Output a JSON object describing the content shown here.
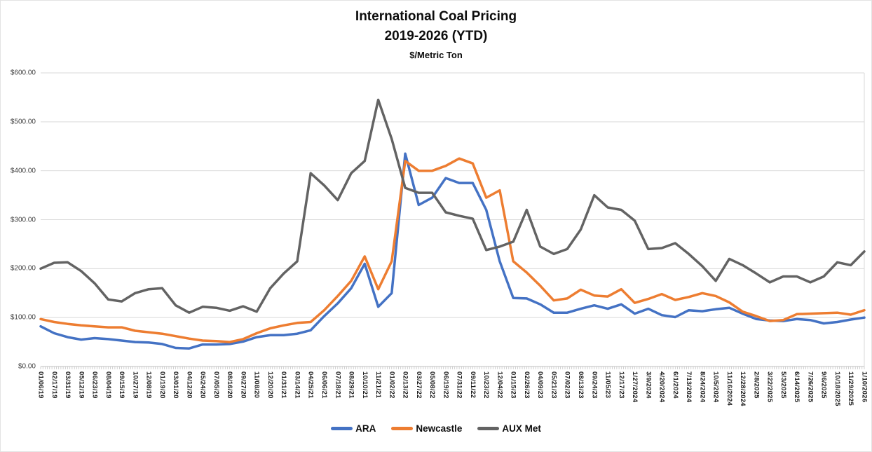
{
  "chart_data": {
    "type": "line",
    "title": "International Coal Pricing",
    "title_line2": "2019-2026 (YTD)",
    "subtitle": "$/Metric Ton",
    "legend_position": "bottom",
    "grid": "horizontal",
    "ylim": [
      0,
      600
    ],
    "y_tick_labels": [
      "$0.00",
      "$100.00",
      "$200.00",
      "$300.00",
      "$400.00",
      "$500.00",
      "$600.00"
    ],
    "x_tick_labels": [
      "01/06/19",
      "02/17/19",
      "03/31/19",
      "05/12/19",
      "06/23/19",
      "08/04/19",
      "09/15/19",
      "10/27/19",
      "12/08/19",
      "01/19/20",
      "03/01/20",
      "04/12/20",
      "05/24/20",
      "07/05/20",
      "08/16/20",
      "09/27/20",
      "11/08/20",
      "12/20/20",
      "01/31/21",
      "03/14/21",
      "04/25/21",
      "06/06/21",
      "07/18/21",
      "08/29/21",
      "10/10/21",
      "11/21/21",
      "01/02/22",
      "02/13/22",
      "03/27/22",
      "05/08/22",
      "06/19/22",
      "07/31/22",
      "09/11/22",
      "10/23/22",
      "12/04/22",
      "01/15/23",
      "02/26/23",
      "04/09/23",
      "05/21/23",
      "07/02/23",
      "08/13/23",
      "09/24/23",
      "11/05/23",
      "12/17/23",
      "1/27/2024",
      "3/9/2024",
      "4/20/2024",
      "6/1/2024",
      "7/13/2024",
      "8/24/2024",
      "10/5/2024",
      "11/16/2024",
      "12/28/2024",
      "2/8/2025",
      "3/22/2025",
      "5/3/2025",
      "6/14/2025",
      "7/26/2025",
      "9/6/2025",
      "10/18/2025",
      "11/29/2025",
      "1/10/2026"
    ],
    "series": [
      {
        "name": "ARA",
        "color": "#4472C4",
        "values": [
          82,
          68,
          60,
          55,
          58,
          56,
          53,
          50,
          49,
          46,
          38,
          37,
          45,
          45,
          46,
          51,
          60,
          64,
          64,
          67,
          74,
          103,
          129,
          160,
          210,
          122,
          150,
          435,
          330,
          345,
          385,
          375,
          375,
          320,
          215,
          140,
          139,
          127,
          110,
          110,
          118,
          125,
          118,
          127,
          108,
          118,
          105,
          101,
          115,
          113,
          117,
          120,
          108,
          97,
          94,
          93,
          97,
          95,
          88,
          91,
          96,
          100
        ]
      },
      {
        "name": "Newcastle",
        "color": "#ED7D31",
        "values": [
          97,
          91,
          87,
          84,
          82,
          80,
          80,
          73,
          70,
          67,
          62,
          57,
          53,
          52,
          50,
          56,
          68,
          78,
          84,
          89,
          91,
          115,
          144,
          175,
          225,
          158,
          215,
          420,
          400,
          400,
          410,
          425,
          415,
          345,
          360,
          215,
          192,
          165,
          135,
          139,
          157,
          145,
          143,
          158,
          130,
          138,
          148,
          136,
          142,
          150,
          144,
          131,
          112,
          103,
          93,
          95,
          107,
          108,
          109,
          110,
          106,
          115
        ]
      },
      {
        "name": "AUX Met",
        "color": "#636363",
        "values": [
          200,
          212,
          213,
          195,
          170,
          137,
          133,
          150,
          158,
          160,
          125,
          110,
          122,
          120,
          114,
          123,
          112,
          160,
          190,
          215,
          395,
          370,
          340,
          395,
          420,
          545,
          465,
          365,
          355,
          355,
          315,
          308,
          302,
          238,
          245,
          255,
          320,
          245,
          230,
          240,
          280,
          350,
          325,
          320,
          298,
          240,
          242,
          252,
          230,
          205,
          175,
          220,
          207,
          190,
          172,
          184,
          184,
          172,
          184,
          213,
          207,
          235
        ]
      }
    ],
    "axis_colors": {
      "gridline": "#d9d9d9",
      "axis_line": "#bfbfbf",
      "tick": "#bfbfbf"
    }
  }
}
